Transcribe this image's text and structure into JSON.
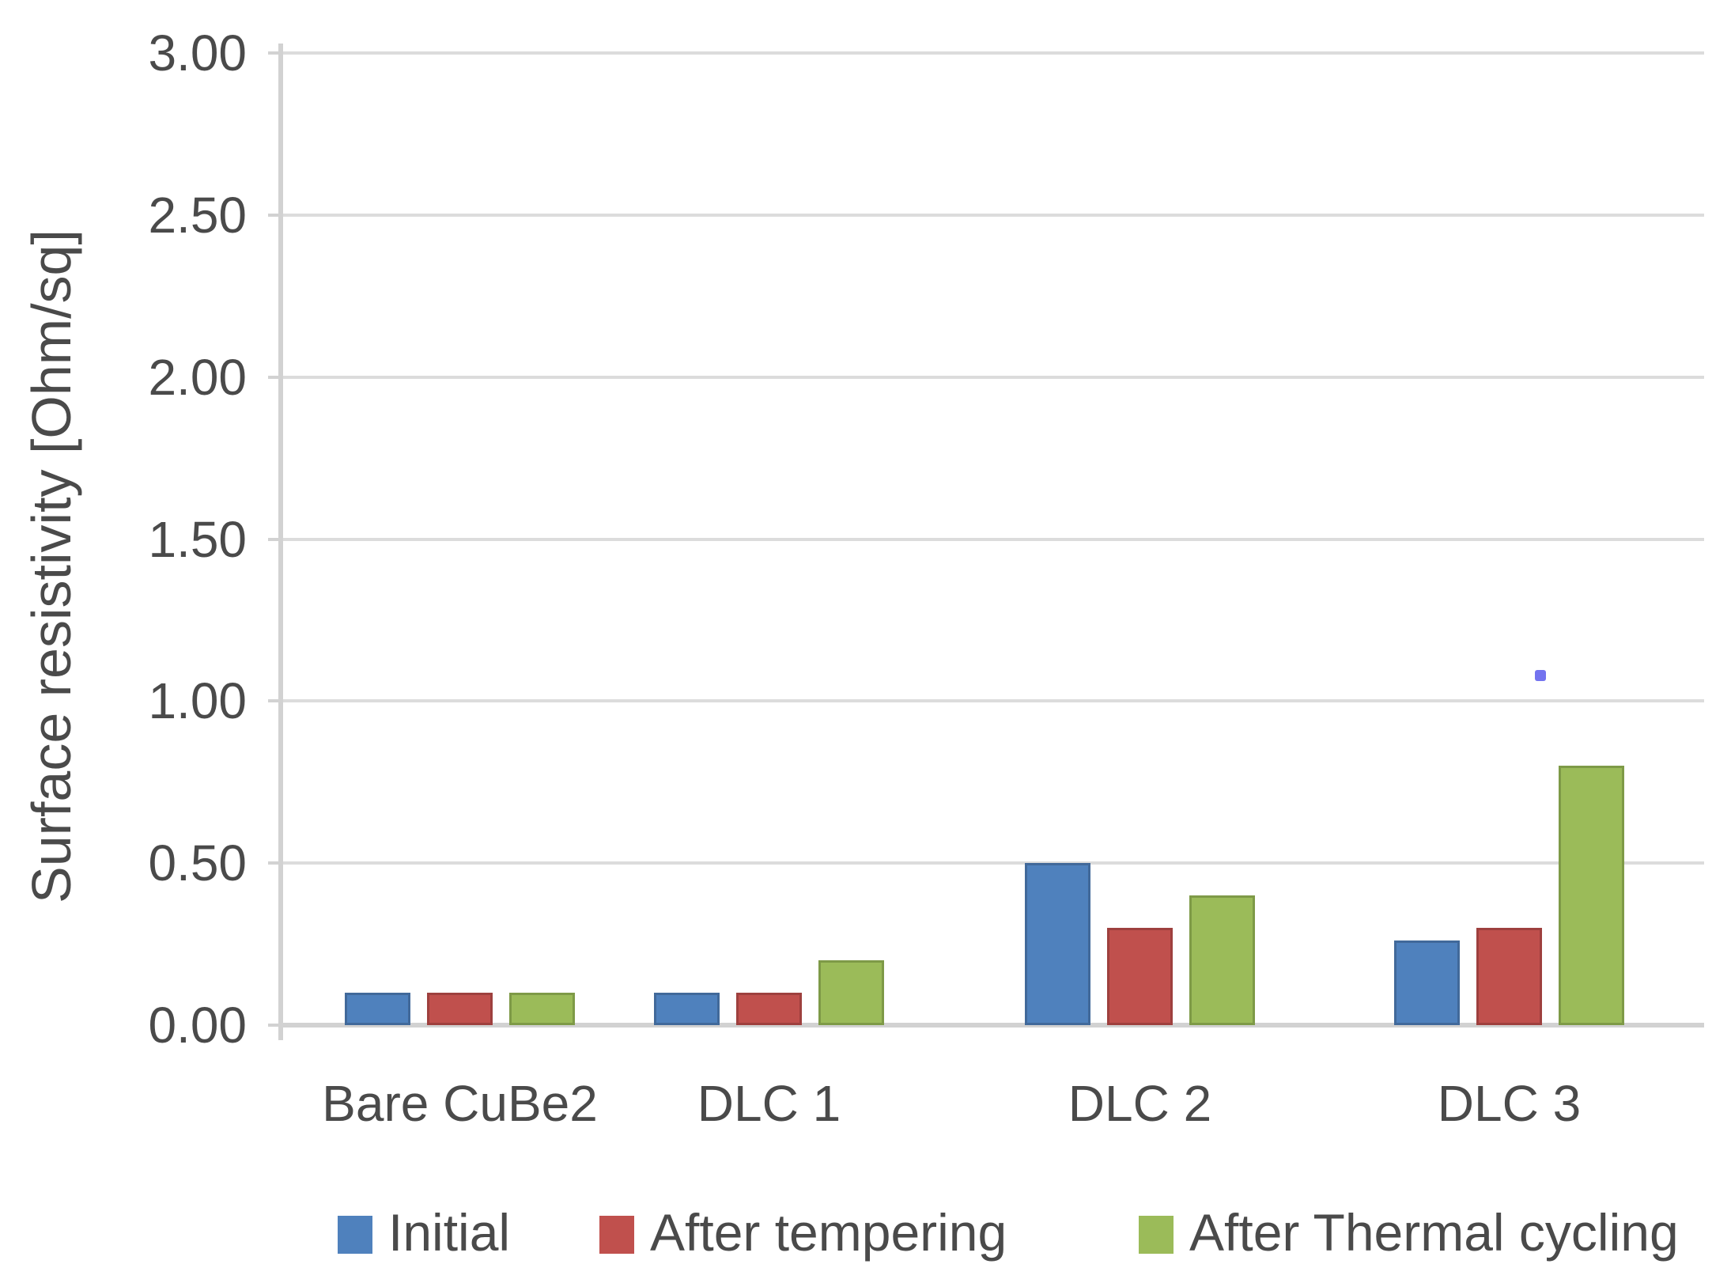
{
  "chart_data": {
    "type": "bar",
    "title": "",
    "xlabel": "",
    "ylabel": "Surface resistivity [Ohm/sq]",
    "categories": [
      "Bare CuBe2",
      "DLC 1",
      "DLC 2",
      "DLC 3"
    ],
    "series": [
      {
        "name": "Initial",
        "color": "#4F81BD",
        "edge": "#41699A",
        "values": [
          0.1,
          0.1,
          0.5,
          0.26
        ]
      },
      {
        "name": "After tempering",
        "color": "#C0504D",
        "edge": "#9E403E",
        "values": [
          0.1,
          0.1,
          0.3,
          0.3
        ]
      },
      {
        "name": "After Thermal cycling",
        "color": "#9BBB59",
        "edge": "#7E9A47",
        "values": [
          0.1,
          0.2,
          0.4,
          0.8
        ]
      }
    ],
    "ylim": [
      0,
      3.0
    ],
    "ytick_step": 0.5,
    "ytick_labels": [
      "0.00",
      "0.50",
      "1.00",
      "1.50",
      "2.00",
      "2.50",
      "3.00"
    ],
    "grid": true,
    "legend_position": "bottom"
  },
  "colors": {
    "gridline": "#dcdcdc",
    "axis": "#d2d2d2",
    "text": "#4a4a4a",
    "background": "#ffffff",
    "stray_dot": "#5a5aec"
  }
}
